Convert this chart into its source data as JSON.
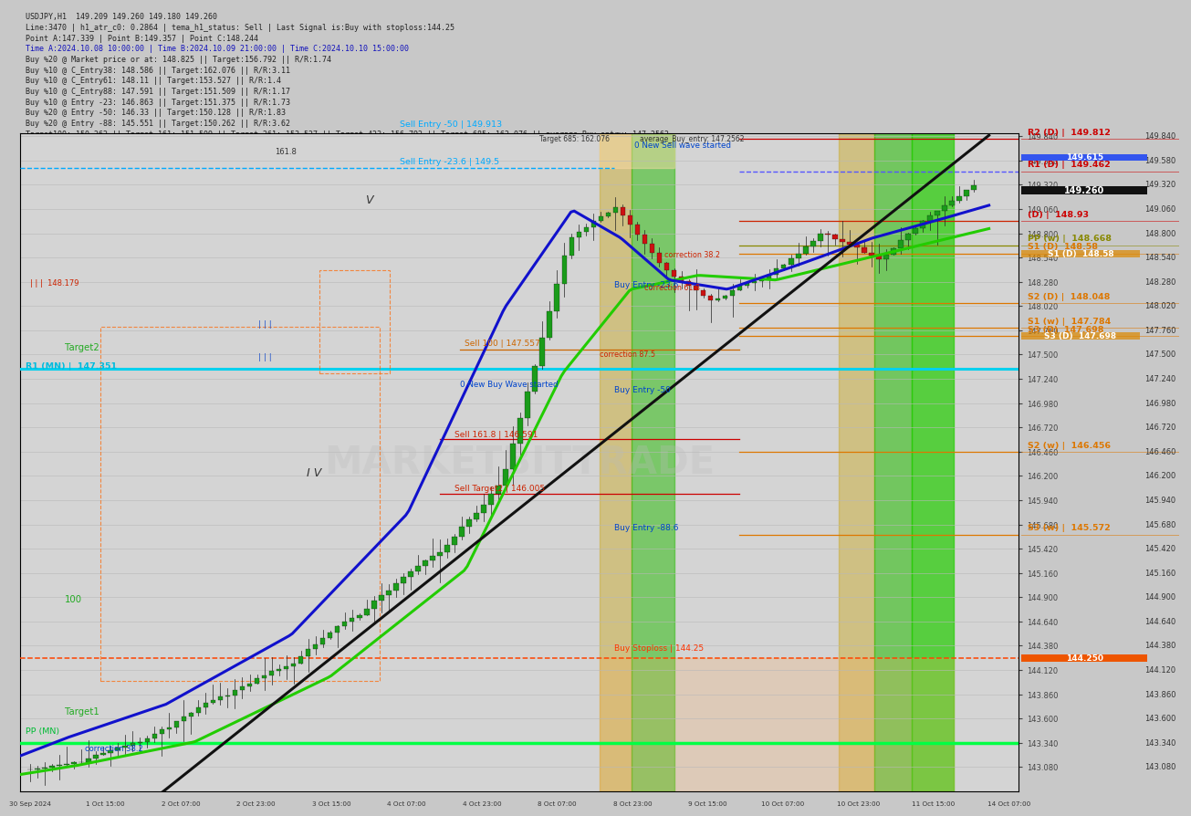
{
  "title": "USDJPY,H1  149.209 149.260 149.180 149.260",
  "subtitle_lines": [
    "Line:3470 | h1_atr_c0: 0.2864 | tema_h1_status: Sell | Last Signal is:Buy with stoploss:144.25",
    "Point A:147.339 | Point B:149.357 | Point C:148.244",
    "Time A:2024.10.08 10:00:00 | Time B:2024.10.09 21:00:00 | Time C:2024.10.10 15:00:00",
    "Buy %20 @ Market price or at: 148.825 || Target:156.792 || R/R:1.74",
    "Buy %10 @ C_Entry38: 148.586 || Target:162.076 || R/R:3.11",
    "Buy %10 @ C_Entry61: 148.11 || Target:153.527 || R/R:1.4",
    "Buy %10 @ C_Entry88: 147.591 || Target:151.509 || R/R:1.17",
    "Buy %10 @ Entry -23: 146.863 || Target:151.375 || R/R:1.73",
    "Buy %20 @ Entry -50: 146.33 || Target:150.128 || R/R:1.83",
    "Buy %20 @ Entry -88: 145.551 || Target:150.262 || R/R:3.62",
    "Target100: 150.262 || Target 161: 151.509 || Target 261: 153.527 || Target 423: 156.792 || Target 685: 162.076 || average_Buy_entry: 147.2562"
  ],
  "price_min": 142.82,
  "price_max": 149.875,
  "x_labels": [
    "30 Sep 2024",
    "1 Oct 15:00",
    "2 Oct 07:00",
    "2 Oct 23:00",
    "3 Oct 15:00",
    "4 Oct 07:00",
    "4 Oct 23:00",
    "8 Oct 07:00",
    "8 Oct 23:00",
    "9 Oct 15:00",
    "10 Oct 07:00",
    "10 Oct 23:00",
    "11 Oct 15:00",
    "14 Oct 07:00"
  ],
  "background_color": "#c8c8c8",
  "right_labels": [
    {
      "text": "R2 (D) |  149.812",
      "price": 149.812,
      "color": "#cc0000"
    },
    {
      "text": "R1 (D) |  149.462",
      "price": 149.462,
      "color": "#cc0000"
    },
    {
      "text": "(D) |  148.93",
      "price": 148.93,
      "color": "#cc0000"
    },
    {
      "text": "PP (w) |  148.668",
      "price": 148.668,
      "color": "#888800"
    },
    {
      "text": "S1 (D)  148.58",
      "price": 148.58,
      "color": "#dd7700"
    },
    {
      "text": "S2 (D) |  148.048",
      "price": 148.048,
      "color": "#dd7700"
    },
    {
      "text": "S1 (w) |  147.784",
      "price": 147.784,
      "color": "#dd7700"
    },
    {
      "text": "S3 (D)  147.698",
      "price": 147.698,
      "color": "#dd7700"
    },
    {
      "text": "S2 (w) |  146.456",
      "price": 146.456,
      "color": "#dd7700"
    },
    {
      "text": "S3 (w) |  145.572",
      "price": 145.572,
      "color": "#dd7700"
    }
  ],
  "current_price": 149.26,
  "current_price_label": "149.260",
  "price_615": 149.615,
  "price_615_label": "149.615",
  "stoploss_price": 144.25,
  "watermark": "MARKETBITTRADE"
}
